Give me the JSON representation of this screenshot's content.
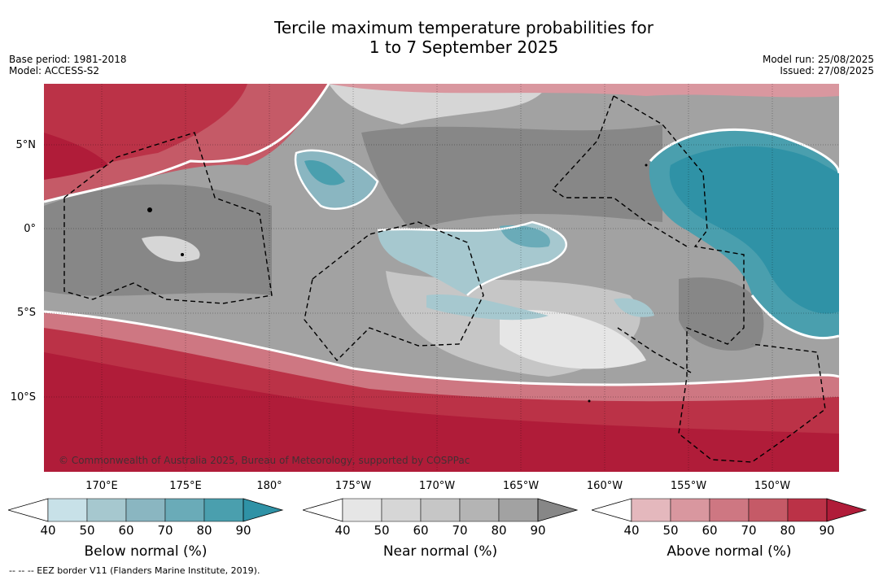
{
  "title_line1": "Tercile maximum temperature probabilities for",
  "title_line2": "1 to 7 September 2025",
  "base_period": "Base period: 1981-2018",
  "model": "Model: ACCESS-S2",
  "model_run": "Model run: 25/08/2025",
  "issued": "Issued: 27/08/2025",
  "copyright": "© Commonwealth of Australia 2025, Bureau of Meteorology, supported by COSPPac",
  "lat_labels": [
    "5°N",
    "0°",
    "5°S",
    "10°S"
  ],
  "lon_labels": [
    "170°E",
    "175°E",
    "180°",
    "175°W",
    "170°W",
    "165°W",
    "160°W",
    "155°W",
    "150°W"
  ],
  "colorbars": [
    {
      "title": "Below normal (%)",
      "ticks": [
        "40",
        "50",
        "60",
        "70",
        "80",
        "90"
      ],
      "colors": [
        "#c8e1e8",
        "#a6c8cf",
        "#8ab6c1",
        "#6aabb8",
        "#4a9fae",
        "#2f92a6"
      ]
    },
    {
      "title": "Near normal (%)",
      "ticks": [
        "40",
        "50",
        "60",
        "70",
        "80",
        "90"
      ],
      "colors": [
        "#e6e6e6",
        "#d6d6d6",
        "#c6c6c6",
        "#b4b4b4",
        "#a2a2a2",
        "#878787"
      ]
    },
    {
      "title": "Above normal (%)",
      "ticks": [
        "40",
        "50",
        "60",
        "70",
        "80",
        "90"
      ],
      "colors": [
        "#e4b8bd",
        "#d9979f",
        "#ce7782",
        "#c55a67",
        "#bb3247",
        "#b01c39"
      ]
    }
  ],
  "footnote": "--  --  -- EEZ border V11 (Flanders Marine Institute, 2019)."
}
